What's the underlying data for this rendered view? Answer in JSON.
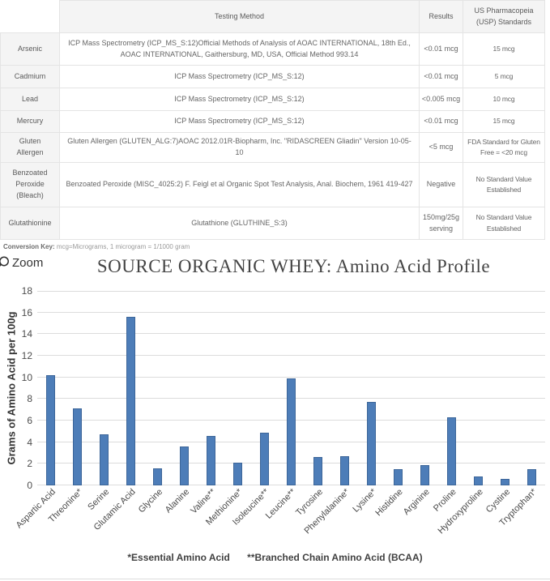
{
  "table": {
    "headers": [
      "",
      "Testing Method",
      "Results",
      "US Pharmacopeia (USP) Standards"
    ],
    "rows": [
      {
        "substance": "Arsenic",
        "method": "ICP Mass Spectrometry (ICP_MS_S:12)Official Methods of Analysis of AOAC INTERNATIONAL, 18th Ed., AOAC INTERNATIONAL, Gaithersburg, MD, USA, Official Method 993.14",
        "result": "<0.01 mcg",
        "standard": "15 mcg"
      },
      {
        "substance": "Cadmium",
        "method": "ICP Mass Spectrometry (ICP_MS_S:12)",
        "result": "<0.01 mcg",
        "standard": "5 mcg"
      },
      {
        "substance": "Lead",
        "method": "ICP Mass Spectrometry (ICP_MS_S:12)",
        "result": "<0.005 mcg",
        "standard": "10 mcg"
      },
      {
        "substance": "Mercury",
        "method": "ICP Mass Spectrometry (ICP_MS_S:12)",
        "result": "<0.01 mcg",
        "standard": "15 mcg"
      },
      {
        "substance": "Gluten Allergen",
        "method": "Gluten Allergen (GLUTEN_ALG:7)AOAC 2012.01R-Biopharm, Inc. \"RIDASCREEN Gliadin\" Version 10-05-10",
        "result": "<5 mcg",
        "standard": "FDA Standard for Gluten Free = <20 mcg"
      },
      {
        "substance": "Benzoated Peroxide (Bleach)",
        "method": "Benzoated Peroxide (MISC_4025:2) F. Feigl et al Organic Spot Test Analysis, Anal. Biochem, 1961 419-427",
        "result": "Negative",
        "standard": "No Standard Value Established"
      },
      {
        "substance": "Glutathionine",
        "method": "Glutathione (GLUTHINE_S:3)",
        "result": "150mg/25g serving",
        "standard": "No Standard Value Established"
      }
    ]
  },
  "conversion_key": {
    "label": "Conversion Key:",
    "text": "mcg=Micrograms, 1 microgram = 1/1000 gram"
  },
  "zoom_control": {
    "label": "Zoom"
  },
  "chart_data": {
    "type": "bar",
    "title": "SOURCE ORGANIC WHEY: Amino Acid Profile",
    "ylabel": "Grams of Amino Acid per 100g",
    "xlabel": "",
    "ylim": [
      0,
      18
    ],
    "ytick_step": 2,
    "grid": true,
    "legend": "none",
    "bar_color": "#4d7db8",
    "categories": [
      "Aspartic Acid",
      "Threonine*",
      "Serine",
      "Glutamic Acid",
      "Glycine",
      "Alanine",
      "Valine**",
      "Methionine*",
      "Isoleucine**",
      "Leucine**",
      "Tyrosine",
      "Phenylalanine*",
      "Lysine*",
      "Histidine",
      "Arginine",
      "Proline",
      "Hydroxyproline",
      "Cystine",
      "Tryptophan*"
    ],
    "values": [
      10.2,
      7.1,
      4.7,
      15.6,
      1.6,
      3.6,
      4.6,
      2.1,
      4.9,
      9.9,
      2.6,
      2.7,
      7.7,
      1.5,
      1.9,
      6.3,
      0.8,
      0.6,
      1.5
    ],
    "footnotes": [
      "*Essential Amino Acid",
      "**Branched Chain Amino Acid (BCAA)"
    ]
  }
}
